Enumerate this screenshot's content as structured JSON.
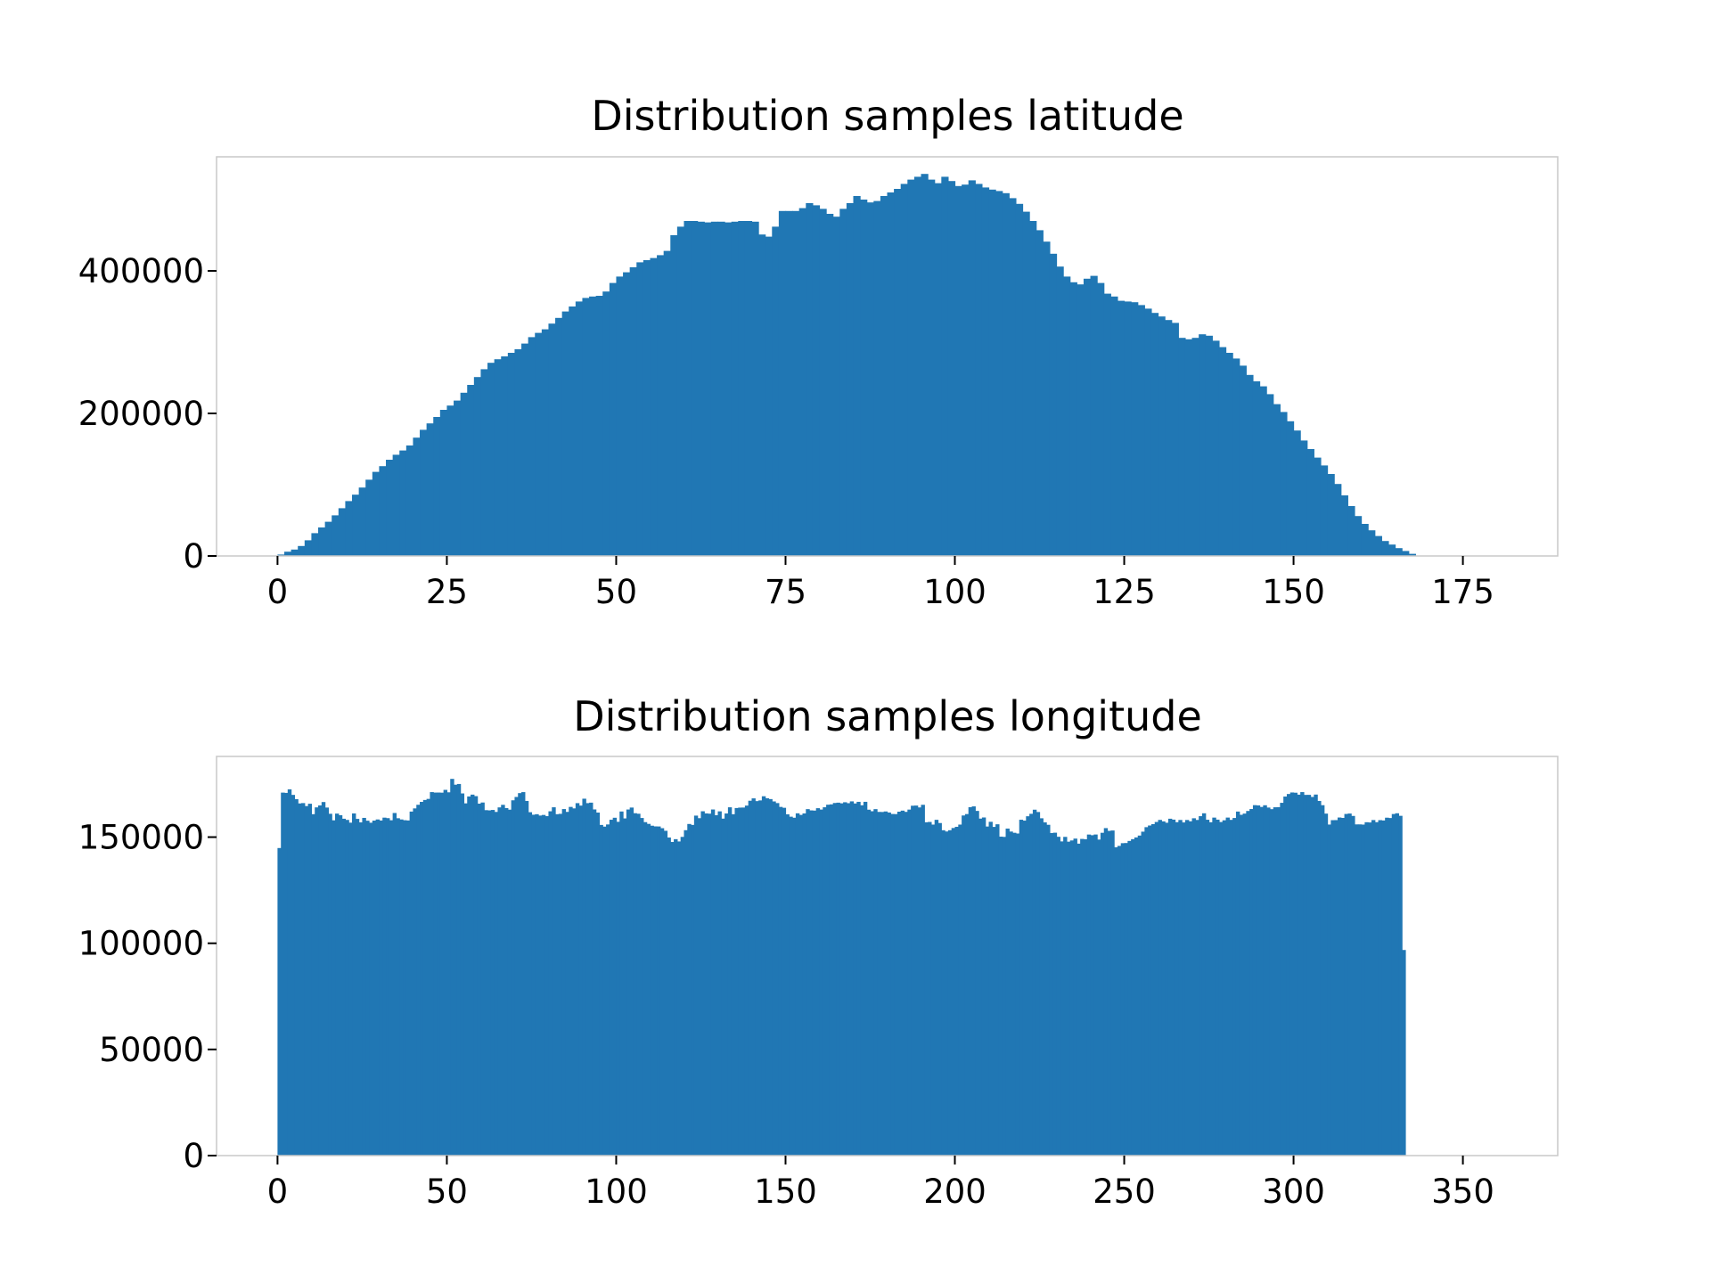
{
  "chart_data": [
    {
      "type": "bar",
      "title": "Distribution samples latitude",
      "xlabel": "",
      "ylabel": "",
      "xlim": [
        -9,
        189
      ],
      "ylim": [
        0,
        560000
      ],
      "xticks": [
        0,
        25,
        50,
        75,
        100,
        125,
        150,
        175
      ],
      "xtick_labels": [
        "0",
        "25",
        "50",
        "75",
        "100",
        "125",
        "150",
        "175"
      ],
      "yticks": [
        0,
        200000,
        400000
      ],
      "ytick_labels": [
        "0",
        "200000",
        "400000"
      ],
      "bin_start": 0,
      "bin_width": 1,
      "color": "#2077b4",
      "grid": false,
      "legend": "none",
      "values": [
        2000,
        6000,
        9000,
        14000,
        22000,
        32000,
        40000,
        48000,
        57000,
        67000,
        77000,
        86000,
        96000,
        107000,
        118000,
        126000,
        135000,
        142000,
        148000,
        155000,
        166000,
        177000,
        186000,
        195000,
        205000,
        211000,
        218000,
        229000,
        240000,
        251000,
        262000,
        271000,
        276000,
        280000,
        285000,
        290000,
        298000,
        307000,
        313000,
        318000,
        326000,
        334000,
        343000,
        350000,
        357000,
        362000,
        364000,
        365000,
        371000,
        383000,
        392000,
        398000,
        405000,
        412000,
        415000,
        418000,
        422000,
        428000,
        450000,
        462000,
        470000,
        470000,
        469000,
        468000,
        469000,
        469000,
        468000,
        469000,
        470000,
        470000,
        469000,
        451000,
        448000,
        462000,
        484000,
        484000,
        484000,
        488000,
        495000,
        492000,
        487000,
        480000,
        476000,
        487000,
        495000,
        505000,
        500000,
        496000,
        498000,
        505000,
        510000,
        515000,
        522000,
        528000,
        532000,
        536000,
        528000,
        523000,
        532000,
        526000,
        519000,
        521000,
        527000,
        522000,
        517000,
        514000,
        512000,
        509000,
        502000,
        494000,
        483000,
        470000,
        457000,
        441000,
        424000,
        406000,
        392000,
        384000,
        381000,
        389000,
        393000,
        383000,
        368000,
        364000,
        358000,
        357000,
        356000,
        352000,
        347000,
        341000,
        336000,
        331000,
        327000,
        306000,
        304000,
        306000,
        311000,
        309000,
        302000,
        293000,
        285000,
        277000,
        267000,
        254000,
        245000,
        238000,
        227000,
        213000,
        202000,
        189000,
        176000,
        162000,
        150000,
        138000,
        127000,
        115000,
        101000,
        85000,
        70000,
        56000,
        45000,
        36000,
        28000,
        21000,
        16000,
        11000,
        7000,
        3000
      ]
    },
    {
      "type": "bar",
      "title": "Distribution samples longitude",
      "xlabel": "",
      "ylabel": "",
      "xlim": [
        -18,
        378
      ],
      "ylim": [
        0,
        188000
      ],
      "xticks": [
        0,
        50,
        100,
        150,
        200,
        250,
        300,
        350
      ],
      "xtick_labels": [
        "0",
        "50",
        "100",
        "150",
        "200",
        "250",
        "300",
        "350"
      ],
      "yticks": [
        0,
        50000,
        100000,
        150000
      ],
      "ytick_labels": [
        "0",
        "50000",
        "100000",
        "150000"
      ],
      "bin_start": 0,
      "bin_width": 1,
      "color": "#2077b4",
      "grid": false,
      "legend": "none",
      "values": [
        144862,
        170956,
        170825,
        172500,
        169887,
        167889,
        165863,
        166026,
        164617,
        165719,
        160807,
        164006,
        164917,
        166520,
        163924,
        160990,
        157922,
        161074,
        160301,
        158657,
        158106,
        156806,
        161146,
        158587,
        156936,
        159058,
        157733,
        156781,
        157780,
        158319,
        157838,
        159174,
        158941,
        157941,
        161357,
        158897,
        158316,
        157964,
        157834,
        162030,
        163526,
        165225,
        166592,
        167493,
        168001,
        171198,
        170983,
        170990,
        170931,
        172256,
        171098,
        177426,
        174689,
        175023,
        170574,
        165896,
        169148,
        170016,
        169306,
        165761,
        166294,
        162701,
        162592,
        162796,
        161865,
        163998,
        165203,
        163683,
        162922,
        167339,
        168916,
        170722,
        171193,
        167034,
        161732,
        160542,
        160785,
        160153,
        160442,
        159870,
        162165,
        164051,
        160789,
        160965,
        163212,
        161879,
        164226,
        163532,
        166000,
        164839,
        168094,
        166003,
        166235,
        163040,
        161564,
        155736,
        154943,
        155963,
        158183,
        159120,
        157214,
        162070,
        158810,
        163006,
        163924,
        161262,
        161010,
        159010,
        157051,
        156232,
        155373,
        155052,
        155018,
        154201,
        152981,
        149806,
        147709,
        149032,
        147955,
        150107,
        153262,
        156190,
        155745,
        160129,
        158929,
        162172,
        161163,
        161043,
        163013,
        160312,
        162136,
        158718,
        161129,
        164048,
        160779,
        163708,
        163896,
        163929,
        164838,
        167137,
        168251,
        166961,
        167287,
        169240,
        168309,
        167917,
        166806,
        166026,
        164227,
        163813,
        160745,
        159622,
        159126,
        161211,
        160458,
        161154,
        163183,
        162591,
        162493,
        163622,
        162979,
        164054,
        165263,
        165426,
        166075,
        166224,
        165914,
        166416,
        165976,
        166839,
        165846,
        166620,
        164996,
        166624,
        162919,
        162195,
        163177,
        161875,
        161829,
        162082,
        161587,
        160892,
        160838,
        161981,
        162474,
        161895,
        162969,
        164780,
        164858,
        163983,
        165216,
        156982,
        157140,
        155900,
        158147,
        156637,
        153244,
        152659,
        153244,
        154286,
        154855,
        155904,
        160195,
        160858,
        164080,
        164474,
        162342,
        158719,
        159251,
        154990,
        157212,
        154811,
        156048,
        150224,
        150106,
        154023,
        152624,
        152047,
        151701,
        158190,
        157771,
        159826,
        160974,
        162919,
        161826,
        158874,
        156937,
        155804,
        151924,
        152083,
        150163,
        147983,
        150110,
        147853,
        148432,
        149300,
        146926,
        149151,
        148979,
        151215,
        150905,
        151232,
        148846,
        152041,
        154237,
        152931,
        153114,
        145201,
        145858,
        147144,
        147218,
        148201,
        149041,
        149851,
        150734,
        152567,
        154689,
        155474,
        156106,
        157125,
        158104,
        157418,
        156773,
        158661,
        158238,
        157036,
        158074,
        156915,
        158065,
        157452,
        158883,
        158082,
        159862,
        161223,
        158181,
        156999,
        159190,
        158226,
        157106,
        157930,
        159209,
        158129,
        159010,
        162036,
        160508,
        161080,
        162314,
        163226,
        165055,
        164930,
        164207,
        165002,
        163931,
        163165,
        164054,
        164096,
        166154,
        169105,
        170302,
        171023,
        170910,
        170001,
        171196,
        169887,
        169904,
        168924,
        170042,
        167035,
        165037,
        161069,
        155923,
        157983,
        158012,
        159232,
        159042,
        160908,
        161103,
        159982,
        155989,
        155996,
        155905,
        157013,
        156903,
        158038,
        157034,
        157993,
        157841,
        159152,
        158988,
        160873,
        161232,
        160036,
        96842
      ]
    }
  ]
}
